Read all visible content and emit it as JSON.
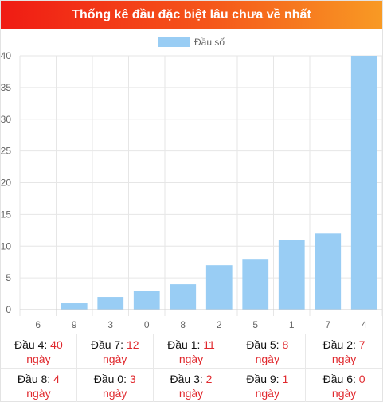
{
  "header": {
    "title": "Thống kê đầu đặc biệt lâu chưa về nhất"
  },
  "colors": {
    "bar": "#99cdf4",
    "grid": "#e6e6e6",
    "red": "#e0282d"
  },
  "chart_data": {
    "type": "bar",
    "categories": [
      "6",
      "9",
      "3",
      "0",
      "8",
      "2",
      "5",
      "1",
      "7",
      "4"
    ],
    "series": [
      {
        "name": "Đầu số",
        "values": [
          0,
          1,
          2,
          3,
          4,
          7,
          8,
          11,
          12,
          40
        ]
      }
    ],
    "ylim": [
      0,
      40
    ],
    "yticks": [
      0,
      5,
      10,
      15,
      20,
      25,
      30,
      35,
      40
    ],
    "legend": "top-center",
    "grid": true
  },
  "stats": [
    {
      "label": "Đầu 4:",
      "value": "40",
      "unit": "ngày"
    },
    {
      "label": "Đầu 7:",
      "value": "12",
      "unit": "ngày"
    },
    {
      "label": "Đầu 1:",
      "value": "11",
      "unit": "ngày"
    },
    {
      "label": "Đầu 5:",
      "value": "8",
      "unit": "ngày"
    },
    {
      "label": "Đầu 2:",
      "value": "7",
      "unit": "ngày"
    },
    {
      "label": "Đầu 8:",
      "value": "4",
      "unit": "ngày"
    },
    {
      "label": "Đầu 0:",
      "value": "3",
      "unit": "ngày"
    },
    {
      "label": "Đầu 3:",
      "value": "2",
      "unit": "ngày"
    },
    {
      "label": "Đầu 9:",
      "value": "1",
      "unit": "ngày"
    },
    {
      "label": "Đầu 6:",
      "value": "0",
      "unit": "ngày"
    }
  ]
}
